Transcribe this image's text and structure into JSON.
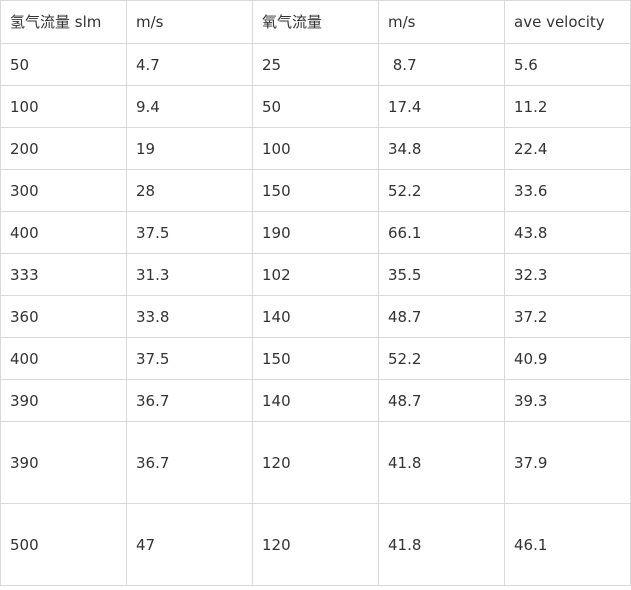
{
  "table": {
    "headers": [
      "氢气流量 slm",
      "m/s",
      "氧气流量",
      "m/s",
      "ave velocity"
    ],
    "rows": [
      [
        "50",
        "4.7",
        "25",
        " 8.7",
        "5.6"
      ],
      [
        "100",
        "9.4",
        "50",
        "17.4",
        "11.2"
      ],
      [
        "200",
        "19",
        "100",
        "34.8",
        "22.4"
      ],
      [
        "300",
        "28",
        "150",
        "52.2",
        "33.6"
      ],
      [
        "400",
        "37.5",
        "190",
        "66.1",
        "43.8"
      ],
      [
        "333",
        "31.3",
        "102",
        "35.5",
        "32.3"
      ],
      [
        "360",
        "33.8",
        "140",
        "48.7",
        "37.2"
      ],
      [
        "400",
        "37.5",
        "150",
        "52.2",
        "40.9"
      ],
      [
        "390",
        "36.7",
        "140",
        "48.7",
        "39.3"
      ],
      [
        "390",
        "36.7",
        "120",
        "41.8",
        "37.9"
      ],
      [
        "500",
        "47",
        "120",
        "41.8",
        "46.1"
      ]
    ]
  }
}
